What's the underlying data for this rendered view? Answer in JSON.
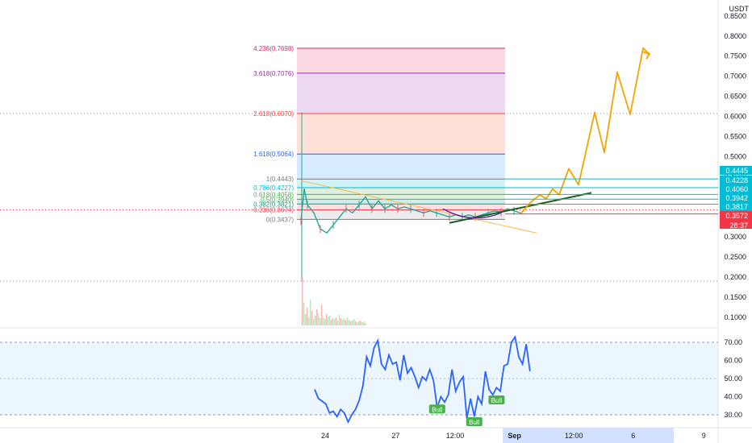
{
  "price_axis": {
    "unit": "USDT",
    "ticks": [
      0.85,
      0.8,
      0.75,
      0.7,
      0.65,
      0.6,
      0.55,
      0.5,
      0.45,
      0.35,
      0.3,
      0.25,
      0.2,
      0.15,
      0.1
    ],
    "tick_labels": [
      "0.8500",
      "0.8000",
      "0.7500",
      "0.7000",
      "0.6500",
      "0.6000",
      "0.5500",
      "0.5000",
      "0.4500",
      "0.3500",
      "0.3000",
      "0.2500",
      "0.2000",
      "0.1500",
      "0.1000"
    ],
    "badges": [
      {
        "label": "0.4445",
        "value": 0.4445,
        "color": "#00bcd4"
      },
      {
        "label": "0.4228",
        "value": 0.4228,
        "color": "#00bcd4"
      },
      {
        "label": "0.4060",
        "value": 0.406,
        "color": "#00bcd4"
      },
      {
        "label": "0.3942",
        "value": 0.3942,
        "color": "#00bcd4"
      },
      {
        "label": "0.3817",
        "value": 0.3817,
        "color": "#00bcd4"
      },
      {
        "label": "0.3572",
        "value": 0.3572,
        "color": "#f23645"
      }
    ],
    "countdown": "28:37"
  },
  "time_axis": {
    "labels": [
      {
        "label": "24",
        "bar": 5
      },
      {
        "label": "27",
        "bar": 24
      },
      {
        "label": "12:00",
        "bar": 40
      },
      {
        "label": "Sep",
        "bar": 56
      },
      {
        "label": "12:00",
        "bar": 72
      },
      {
        "label": "6",
        "bar": 88
      },
      {
        "label": "9",
        "bar": 107
      }
    ],
    "highlight_bar_range": [
      65,
      118
    ]
  },
  "rsi_axis": {
    "ticks": [
      30,
      40,
      50,
      60,
      70
    ],
    "tick_labels": [
      "30.00",
      "40.00",
      "50.00",
      "60.00",
      "70.00"
    ],
    "band": [
      30,
      70
    ]
  },
  "chart_data": [
    {
      "type": "line",
      "name": "price",
      "fib_levels": [
        {
          "ratio": "4.236",
          "price": 0.7698,
          "label": "4.236(0.7698)",
          "color": "#e91e63"
        },
        {
          "ratio": "3.618",
          "price": 0.7076,
          "label": "3.618(0.7076)",
          "color": "#9c27b0"
        },
        {
          "ratio": "2.618",
          "price": 0.607,
          "label": "2.618(0.6070)",
          "color": "#f44336"
        },
        {
          "ratio": "1.618",
          "price": 0.5064,
          "label": "1.618(0.5064)",
          "color": "#2962ff"
        },
        {
          "ratio": "1",
          "price": 0.4443,
          "label": "1(0.4443)",
          "color": "#787b86"
        },
        {
          "ratio": "0.786",
          "price": 0.4227,
          "label": "0.786(0.4227)",
          "color": "#00bcd4"
        },
        {
          "ratio": "0.618",
          "price": 0.4058,
          "label": "0.618(0.4058)",
          "color": "#4caf50"
        },
        {
          "ratio": "0.5",
          "price": 0.394,
          "label": "0.5(0.3940)",
          "color": "#4caf50"
        },
        {
          "ratio": "0.382",
          "price": 0.3821,
          "label": "0.382(0.3821)",
          "color": "#089981"
        },
        {
          "ratio": "0.236",
          "price": 0.3674,
          "label": "0.236(0.3674)",
          "color": "#f23645"
        },
        {
          "ratio": "0",
          "price": 0.3437,
          "label": "0(0.3437)",
          "color": "#787b86"
        }
      ],
      "price_path": [
        [
          0,
          0.34
        ],
        [
          1,
          0.42
        ],
        [
          2,
          0.38
        ],
        [
          4,
          0.36
        ],
        [
          6,
          0.32
        ],
        [
          8,
          0.31
        ],
        [
          10,
          0.33
        ],
        [
          12,
          0.35
        ],
        [
          14,
          0.37
        ],
        [
          16,
          0.36
        ],
        [
          18,
          0.38
        ],
        [
          20,
          0.4
        ],
        [
          22,
          0.37
        ],
        [
          24,
          0.39
        ],
        [
          26,
          0.37
        ],
        [
          28,
          0.38
        ],
        [
          30,
          0.37
        ],
        [
          32,
          0.375
        ],
        [
          34,
          0.37
        ],
        [
          36,
          0.365
        ],
        [
          38,
          0.36
        ],
        [
          40,
          0.365
        ],
        [
          42,
          0.36
        ],
        [
          44,
          0.355
        ],
        [
          46,
          0.35
        ],
        [
          48,
          0.355
        ],
        [
          50,
          0.35
        ],
        [
          52,
          0.355
        ],
        [
          54,
          0.35
        ],
        [
          56,
          0.355
        ],
        [
          58,
          0.36
        ],
        [
          60,
          0.365
        ],
        [
          62,
          0.362
        ],
        [
          64,
          0.37
        ],
        [
          66,
          0.365
        ],
        [
          68,
          0.36
        ]
      ],
      "projection_path": [
        [
          68,
          0.3572
        ],
        [
          71,
          0.385
        ],
        [
          74,
          0.405
        ],
        [
          76,
          0.395
        ],
        [
          78,
          0.42
        ],
        [
          80,
          0.405
        ],
        [
          83,
          0.47
        ],
        [
          86,
          0.43
        ],
        [
          91,
          0.61
        ],
        [
          94,
          0.51
        ],
        [
          98,
          0.71
        ],
        [
          102,
          0.605
        ],
        [
          106,
          0.77
        ],
        [
          108,
          0.755
        ]
      ],
      "trendline_up": [
        [
          46,
          0.335
        ],
        [
          90,
          0.41
        ]
      ],
      "trendline_down": [
        [
          0,
          0.44
        ],
        [
          73,
          0.31
        ]
      ],
      "horizontal_lines": [
        0.607,
        0.3674,
        0.19
      ],
      "volume": [
        60,
        28,
        14,
        22,
        10,
        32,
        18,
        8,
        12,
        20,
        15,
        9,
        26,
        10,
        8,
        14,
        11,
        12,
        7,
        9,
        8,
        10,
        6,
        13,
        9,
        7,
        8,
        6,
        10,
        7,
        5,
        6,
        8,
        5,
        4,
        5,
        6,
        4,
        5,
        3
      ]
    },
    {
      "type": "line",
      "name": "RSI",
      "values": [
        [
          0,
          44
        ],
        [
          1,
          39
        ],
        [
          3,
          36
        ],
        [
          4,
          31
        ],
        [
          5,
          32
        ],
        [
          6,
          29
        ],
        [
          7,
          33
        ],
        [
          8,
          31
        ],
        [
          9,
          26
        ],
        [
          10,
          30
        ],
        [
          11,
          33
        ],
        [
          12,
          38
        ],
        [
          13,
          46
        ],
        [
          14,
          62
        ],
        [
          15,
          57
        ],
        [
          16,
          67
        ],
        [
          17,
          71
        ],
        [
          18,
          58
        ],
        [
          19,
          55
        ],
        [
          20,
          63
        ],
        [
          21,
          58
        ],
        [
          22,
          59
        ],
        [
          23,
          49
        ],
        [
          24,
          63
        ],
        [
          25,
          53
        ],
        [
          26,
          56
        ],
        [
          27,
          51
        ],
        [
          28,
          45
        ],
        [
          29,
          51
        ],
        [
          30,
          49
        ],
        [
          31,
          55
        ],
        [
          32,
          49
        ],
        [
          33,
          34
        ],
        [
          34,
          40
        ],
        [
          35,
          37
        ],
        [
          36,
          41
        ],
        [
          37,
          55
        ],
        [
          38,
          43
        ],
        [
          39,
          48
        ],
        [
          40,
          51
        ],
        [
          41,
          28
        ],
        [
          42,
          39
        ],
        [
          43,
          29
        ],
        [
          44,
          40
        ],
        [
          45,
          36
        ],
        [
          46,
          54
        ],
        [
          47,
          44
        ],
        [
          48,
          41
        ],
        [
          49,
          45
        ],
        [
          50,
          43
        ],
        [
          51,
          57
        ],
        [
          52,
          58
        ],
        [
          53,
          70
        ],
        [
          54,
          73
        ],
        [
          55,
          62
        ],
        [
          56,
          58
        ],
        [
          57,
          69
        ],
        [
          58,
          54
        ]
      ],
      "signals": [
        {
          "label": "Bull",
          "bar": 33,
          "value": 33
        },
        {
          "label": "Bull",
          "bar": 43,
          "value": 26
        },
        {
          "label": "Bull",
          "bar": 49,
          "value": 38
        }
      ]
    }
  ]
}
